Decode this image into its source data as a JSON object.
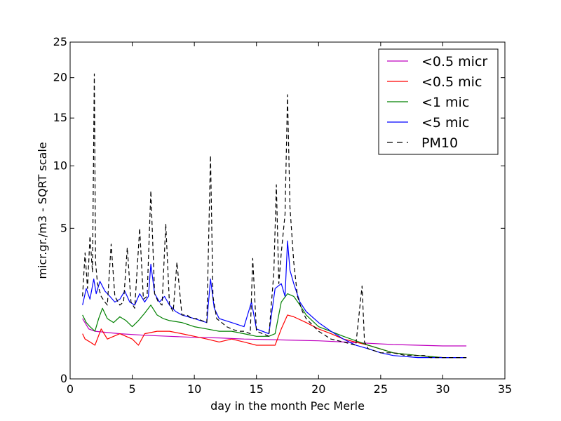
{
  "chart_data": {
    "type": "line",
    "title": "",
    "xlabel": "day in the month Pec Merle",
    "ylabel": "micr.gr./m3 - SQRT scale",
    "xlim": [
      0,
      35
    ],
    "ylim": [
      0,
      25
    ],
    "y_scale": "sqrt",
    "grid": false,
    "legend_position": "top-right",
    "x_ticks": [
      0,
      5,
      10,
      15,
      20,
      25,
      30,
      35
    ],
    "y_ticks": [
      0,
      5,
      10,
      15,
      20,
      25
    ],
    "x_tick_labels": [
      "0",
      "5",
      "10",
      "15",
      "20",
      "25",
      "30",
      "35"
    ],
    "y_tick_labels": [
      "0",
      "5",
      "10",
      "15",
      "20",
      "25"
    ],
    "series": [
      {
        "name": "<0.5 micr",
        "color": "#bf00bf",
        "dash": "solid",
        "x": [
          1.0,
          1.5,
          2.0,
          4.0,
          6.0,
          8.0,
          10.0,
          12.0,
          14.0,
          16.0,
          18.0,
          20.0,
          22.0,
          24.0,
          26.0,
          28.0,
          30.0,
          31.9
        ],
        "y": [
          0.8,
          0.55,
          0.5,
          0.45,
          0.42,
          0.4,
          0.38,
          0.37,
          0.35,
          0.34,
          0.33,
          0.32,
          0.3,
          0.28,
          0.26,
          0.25,
          0.24,
          0.24
        ]
      },
      {
        "name": "<0.5 mic",
        "color": "#ff0000",
        "dash": "solid",
        "x": [
          1.0,
          1.2,
          1.6,
          2.0,
          2.5,
          3.0,
          4.0,
          5.0,
          5.5,
          6.0,
          7.0,
          8.0,
          9.0,
          10.0,
          11.0,
          12.0,
          13.0,
          14.0,
          15.0,
          16.0,
          16.5,
          17.0,
          17.5,
          18.0,
          19.0,
          20.0,
          21.0,
          22.0,
          24.0,
          26.0,
          28.0,
          30.0,
          31.9
        ],
        "y": [
          0.45,
          0.35,
          0.3,
          0.25,
          0.55,
          0.35,
          0.45,
          0.35,
          0.25,
          0.45,
          0.5,
          0.5,
          0.45,
          0.4,
          0.35,
          0.3,
          0.35,
          0.3,
          0.25,
          0.25,
          0.25,
          0.55,
          0.9,
          0.85,
          0.7,
          0.55,
          0.45,
          0.35,
          0.25,
          0.15,
          0.12,
          0.1,
          0.1
        ]
      },
      {
        "name": "<1 mic",
        "color": "#008000",
        "dash": "solid",
        "x": [
          1.0,
          1.3,
          1.6,
          2.0,
          2.3,
          2.6,
          3.0,
          3.5,
          4.0,
          4.5,
          5.0,
          5.5,
          6.0,
          6.5,
          7.0,
          7.5,
          8.0,
          9.0,
          10.0,
          11.0,
          12.0,
          13.0,
          14.0,
          15.0,
          16.0,
          16.5,
          17.0,
          17.5,
          18.0,
          18.5,
          19.0,
          20.0,
          22.0,
          24.0,
          26.0,
          28.0,
          30.0,
          31.9
        ],
        "y": [
          0.9,
          0.7,
          0.6,
          0.5,
          0.8,
          1.1,
          0.8,
          0.7,
          0.85,
          0.75,
          0.6,
          0.75,
          0.95,
          1.2,
          0.9,
          0.8,
          0.75,
          0.7,
          0.6,
          0.55,
          0.5,
          0.5,
          0.45,
          0.4,
          0.4,
          0.45,
          1.3,
          1.6,
          1.5,
          1.2,
          0.9,
          0.6,
          0.4,
          0.25,
          0.15,
          0.12,
          0.1,
          0.1
        ]
      },
      {
        "name": "<5 mic",
        "color": "#0000ff",
        "dash": "solid",
        "x": [
          1.0,
          1.3,
          1.6,
          1.9,
          2.1,
          2.4,
          2.8,
          3.2,
          3.6,
          4.0,
          4.4,
          4.8,
          5.2,
          5.6,
          6.0,
          6.3,
          6.5,
          6.8,
          7.2,
          7.6,
          8.0,
          8.5,
          9.0,
          9.5,
          10.0,
          10.5,
          11.0,
          11.3,
          11.6,
          12.0,
          13.0,
          14.0,
          14.6,
          15.0,
          16.0,
          16.5,
          17.0,
          17.3,
          17.5,
          17.7,
          18.0,
          18.5,
          19.0,
          20.0,
          21.0,
          22.0,
          23.0,
          24.0,
          25.0,
          26.0,
          28.0,
          30.0,
          31.9
        ],
        "y": [
          1.2,
          1.8,
          1.4,
          2.2,
          1.6,
          2.1,
          1.7,
          1.5,
          1.3,
          1.4,
          1.7,
          1.3,
          1.2,
          1.6,
          1.3,
          1.5,
          2.9,
          1.6,
          1.3,
          1.5,
          1.2,
          1.0,
          0.9,
          0.85,
          0.8,
          0.75,
          0.7,
          2.2,
          1.1,
          0.8,
          0.7,
          0.6,
          1.3,
          0.55,
          0.45,
          1.8,
          2.0,
          1.5,
          4.2,
          2.6,
          2.0,
          1.3,
          1.0,
          0.7,
          0.5,
          0.35,
          0.25,
          0.2,
          0.15,
          0.12,
          0.1,
          0.1,
          0.1
        ]
      },
      {
        "name": "PM10",
        "color": "#000000",
        "dash": "dashed",
        "x": [
          1.0,
          1.2,
          1.4,
          1.6,
          1.8,
          1.95,
          2.05,
          2.2,
          2.5,
          2.8,
          3.0,
          3.3,
          3.6,
          4.0,
          4.3,
          4.6,
          4.9,
          5.2,
          5.6,
          5.9,
          6.2,
          6.5,
          6.8,
          7.1,
          7.4,
          7.7,
          8.0,
          8.3,
          8.6,
          9.0,
          9.4,
          9.8,
          10.2,
          10.6,
          11.0,
          11.3,
          11.5,
          11.8,
          12.2,
          12.6,
          13.0,
          13.5,
          14.0,
          14.5,
          14.7,
          15.0,
          15.5,
          16.0,
          16.4,
          16.6,
          16.8,
          17.0,
          17.3,
          17.5,
          17.7,
          18.0,
          18.3,
          18.7,
          19.0,
          20.0,
          21.0,
          22.0,
          23.0,
          23.5,
          23.7,
          24.0,
          25.0,
          26.0,
          27.0,
          28.0,
          28.5,
          29.0,
          30.0,
          31.0,
          31.9
        ],
        "y": [
          1.5,
          3.5,
          1.8,
          4.5,
          2.5,
          20.5,
          3.0,
          2.0,
          1.5,
          1.3,
          1.2,
          4.0,
          1.5,
          1.2,
          1.3,
          3.8,
          1.3,
          1.1,
          5.0,
          1.4,
          1.5,
          7.8,
          1.6,
          1.3,
          1.2,
          5.3,
          1.2,
          1.0,
          3.0,
          0.9,
          0.9,
          0.8,
          0.8,
          0.75,
          0.7,
          11.0,
          1.5,
          0.8,
          0.7,
          0.6,
          0.55,
          0.5,
          0.5,
          0.45,
          3.2,
          0.5,
          0.45,
          0.4,
          2.5,
          8.3,
          2.0,
          3.5,
          6.0,
          17.8,
          6.5,
          3.0,
          1.5,
          1.0,
          0.8,
          0.5,
          0.35,
          0.3,
          0.25,
          1.9,
          0.3,
          0.2,
          0.15,
          0.15,
          0.12,
          0.12,
          0.12,
          0.1,
          0.1,
          0.1,
          0.1
        ]
      }
    ]
  }
}
